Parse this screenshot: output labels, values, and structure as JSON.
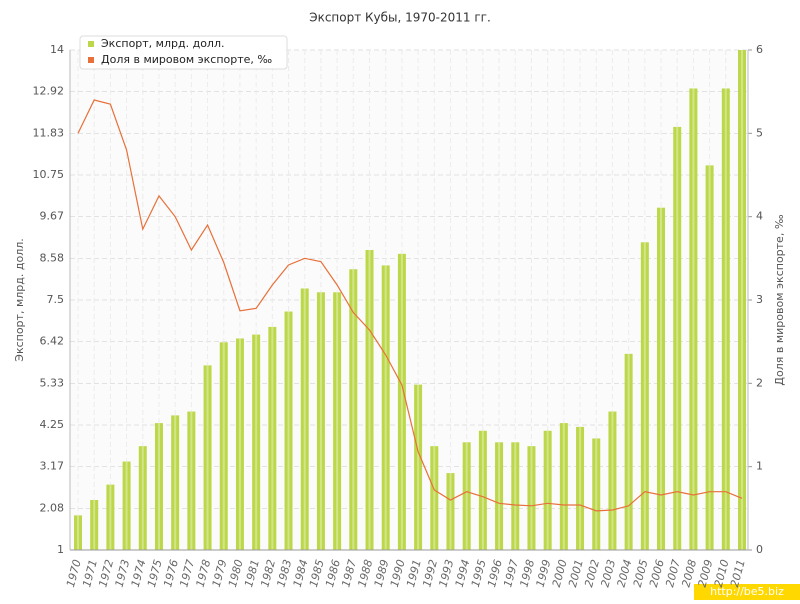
{
  "chart_data": {
    "type": "bar-line",
    "title": "Экспорт Кубы, 1970-2011 гг.",
    "ylabel": "Экспорт, млрд. долл.",
    "y2label": "Доля в мировом экспорте, ‰",
    "categories": [
      "1970",
      "1971",
      "1972",
      "1973",
      "1974",
      "1975",
      "1976",
      "1977",
      "1978",
      "1979",
      "1980",
      "1981",
      "1982",
      "1983",
      "1984",
      "1985",
      "1986",
      "1987",
      "1988",
      "1989",
      "1990",
      "1991",
      "1992",
      "1993",
      "1994",
      "1995",
      "1996",
      "1997",
      "1998",
      "1999",
      "2000",
      "2001",
      "2002",
      "2003",
      "2004",
      "2005",
      "2006",
      "2007",
      "2008",
      "2009",
      "2010",
      "2011"
    ],
    "series": [
      {
        "name": "Экспорт, млрд. долл.",
        "type": "bar",
        "color": "#bcd84a",
        "values": [
          1.9,
          2.3,
          2.7,
          3.3,
          3.7,
          4.3,
          4.5,
          4.6,
          5.8,
          6.4,
          6.5,
          6.6,
          6.8,
          7.2,
          7.8,
          7.7,
          7.7,
          8.3,
          8.8,
          8.4,
          8.7,
          5.3,
          3.7,
          3.0,
          3.8,
          4.1,
          3.8,
          3.8,
          3.7,
          4.1,
          4.3,
          4.2,
          3.9,
          4.6,
          6.1,
          9.0,
          9.9,
          12.0,
          13.0,
          11.0,
          13.0,
          14.0
        ]
      },
      {
        "name": "Доля в мировом экспорте, ‰",
        "type": "line",
        "axis": "y2",
        "color": "#e8703a",
        "values": [
          5.0,
          5.4,
          5.35,
          4.8,
          3.85,
          4.25,
          4.0,
          3.6,
          3.9,
          3.45,
          2.87,
          2.9,
          3.18,
          3.42,
          3.5,
          3.46,
          3.18,
          2.85,
          2.64,
          2.34,
          1.98,
          1.18,
          0.72,
          0.6,
          0.7,
          0.64,
          0.56,
          0.54,
          0.53,
          0.56,
          0.54,
          0.54,
          0.47,
          0.48,
          0.53,
          0.7,
          0.66,
          0.7,
          0.66,
          0.7,
          0.7,
          0.62
        ]
      }
    ],
    "ylim": [
      1,
      14
    ],
    "yticks": [
      1,
      2.08,
      3.17,
      4.25,
      5.33,
      6.42,
      7.5,
      8.58,
      9.67,
      10.75,
      11.83,
      12.92,
      14
    ],
    "y2lim": [
      0,
      6
    ],
    "y2ticks": [
      0,
      1,
      2,
      3,
      4,
      5,
      6
    ],
    "grid": true,
    "legend": "top-left",
    "watermark": "http://be5.biz"
  }
}
